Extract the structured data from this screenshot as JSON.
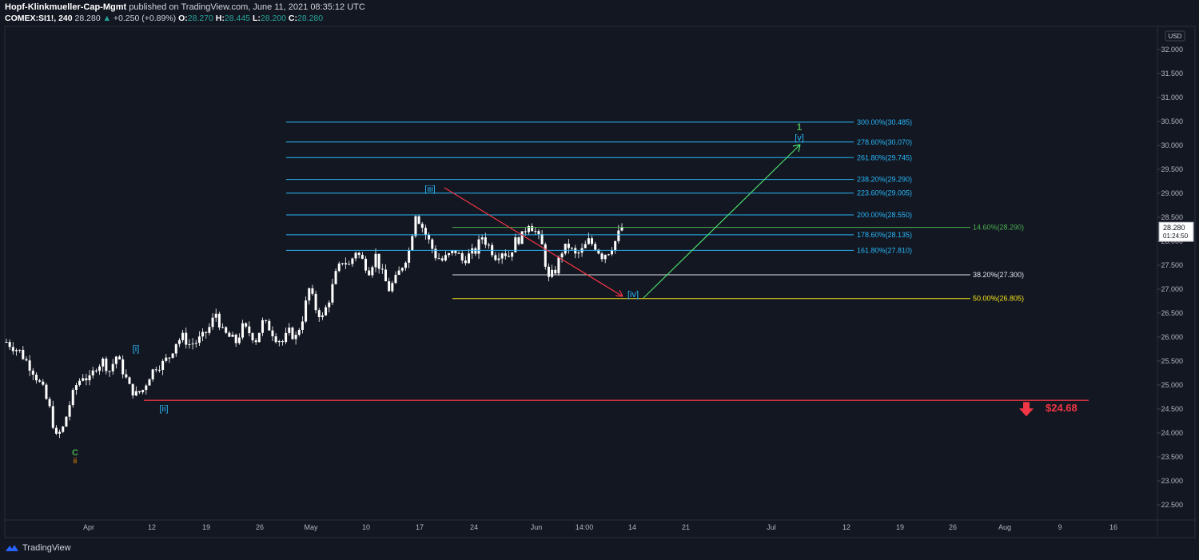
{
  "header": {
    "author": "Hopf-Klinkmueller-Cap-Mgmt",
    "published": "published on TradingView.com, June 11, 2021 08:35:12 UTC",
    "symbol": "COMEX:SI1!, 240",
    "last": "28.280",
    "change_arrow": "▲",
    "change": "+0.250 (+0.89%)",
    "o_label": "O:",
    "o_value": "28.270",
    "h_label": "H:",
    "h_value": "28.445",
    "l_label": "L:",
    "l_value": "28.200",
    "c_label": "C:",
    "c_value": "28.280"
  },
  "footer": {
    "brand": "TradingView",
    "icon": "tradingview-logo-icon"
  },
  "chart_data": {
    "type": "candlestick",
    "currency": "USD",
    "timeframe": "240",
    "ylim": [
      22.0,
      32.5
    ],
    "y_ticks": [
      "32.000",
      "31.500",
      "31.000",
      "30.500",
      "30.000",
      "29.500",
      "29.000",
      "28.500",
      "28.000",
      "27.500",
      "27.000",
      "26.500",
      "26.000",
      "25.500",
      "25.000",
      "24.500",
      "24.000",
      "23.500",
      "23.000",
      "22.500"
    ],
    "x_ticks": [
      "Apr",
      "12",
      "19",
      "26",
      "May",
      "10",
      "17",
      "24",
      "Jun",
      "14:00",
      "14",
      "21",
      "Jul",
      "12",
      "19",
      "26",
      "Aug",
      "9",
      "16"
    ],
    "price_tag": {
      "value": "28.280",
      "countdown": "01:24:50"
    },
    "price_path": [
      [
        0,
        25.9
      ],
      [
        4,
        25.7
      ],
      [
        8,
        25.3
      ],
      [
        11,
        24.9
      ],
      [
        13,
        24.5
      ],
      [
        15,
        23.9
      ],
      [
        17,
        24.1
      ],
      [
        19,
        24.6
      ],
      [
        21,
        25.0
      ],
      [
        23,
        25.2
      ],
      [
        25,
        25.1
      ],
      [
        27,
        25.4
      ],
      [
        29,
        25.5
      ],
      [
        31,
        25.3
      ],
      [
        33,
        25.6
      ],
      [
        35,
        25.3
      ],
      [
        37,
        24.95
      ],
      [
        39,
        24.8
      ],
      [
        41,
        24.9
      ],
      [
        43,
        25.2
      ],
      [
        45,
        25.4
      ],
      [
        47,
        25.45
      ],
      [
        49,
        25.6
      ],
      [
        51,
        25.9
      ],
      [
        53,
        26.0
      ],
      [
        55,
        25.85
      ],
      [
        57,
        25.9
      ],
      [
        59,
        26.0
      ],
      [
        61,
        26.2
      ],
      [
        63,
        26.5
      ],
      [
        65,
        26.1
      ],
      [
        67,
        26.0
      ],
      [
        69,
        25.9
      ],
      [
        71,
        26.2
      ],
      [
        73,
        26.1
      ],
      [
        75,
        25.95
      ],
      [
        77,
        26.3
      ],
      [
        79,
        26.2
      ],
      [
        81,
        26.0
      ],
      [
        83,
        25.9
      ],
      [
        85,
        26.1
      ],
      [
        87,
        26.0
      ],
      [
        89,
        26.4
      ],
      [
        91,
        27.0
      ],
      [
        93,
        26.6
      ],
      [
        95,
        26.4
      ],
      [
        97,
        26.8
      ],
      [
        99,
        27.3
      ],
      [
        101,
        27.6
      ],
      [
        103,
        27.5
      ],
      [
        105,
        27.8
      ],
      [
        107,
        27.6
      ],
      [
        109,
        27.4
      ],
      [
        111,
        27.7
      ],
      [
        113,
        27.3
      ],
      [
        115,
        27.0
      ],
      [
        117,
        27.2
      ],
      [
        119,
        27.5
      ],
      [
        121,
        27.8
      ],
      [
        123,
        28.6
      ],
      [
        125,
        28.3
      ],
      [
        127,
        28.0
      ],
      [
        129,
        27.7
      ],
      [
        131,
        27.6
      ],
      [
        133,
        27.7
      ],
      [
        135,
        27.8
      ],
      [
        137,
        27.6
      ],
      [
        139,
        27.7
      ],
      [
        141,
        27.8
      ],
      [
        143,
        28.1
      ],
      [
        145,
        27.9
      ],
      [
        147,
        27.7
      ],
      [
        149,
        27.8
      ],
      [
        151,
        27.7
      ],
      [
        153,
        28.0
      ],
      [
        155,
        28.1
      ],
      [
        157,
        28.4
      ],
      [
        159,
        28.2
      ],
      [
        161,
        27.9
      ],
      [
        163,
        27.2
      ],
      [
        165,
        27.4
      ],
      [
        167,
        27.8
      ],
      [
        169,
        27.9
      ],
      [
        171,
        27.7
      ],
      [
        173,
        27.8
      ],
      [
        175,
        28.0
      ],
      [
        177,
        27.9
      ],
      [
        179,
        27.7
      ],
      [
        181,
        27.8
      ],
      [
        183,
        28.0
      ],
      [
        185,
        28.3
      ]
    ],
    "price_path_x_unit": "4h bars since start of chart",
    "fib_levels": [
      {
        "label": "300.00%(30.485)",
        "value": 30.485,
        "color": "#29b6f6"
      },
      {
        "label": "278.60%(30.070)",
        "value": 30.07,
        "color": "#29b6f6"
      },
      {
        "label": "261.80%(29.745)",
        "value": 29.745,
        "color": "#29b6f6"
      },
      {
        "label": "238.20%(29.290)",
        "value": 29.29,
        "color": "#29b6f6"
      },
      {
        "label": "223.60%(29.005)",
        "value": 29.005,
        "color": "#29b6f6"
      },
      {
        "label": "200.00%(28.550)",
        "value": 28.55,
        "color": "#29b6f6"
      },
      {
        "label": "178.60%(28.135)",
        "value": 28.135,
        "color": "#29b6f6"
      },
      {
        "label": "161.80%(27.810)",
        "value": 27.81,
        "color": "#29b6f6"
      }
    ],
    "retracements": [
      {
        "label": "14.60%(28.290)",
        "value": 28.29,
        "color": "#4caf50"
      },
      {
        "label": "38.20%(27.300)",
        "value": 27.3,
        "color": "#e0e3eb"
      },
      {
        "label": "50.00%(26.805)",
        "value": 26.805,
        "color": "#f5e41b"
      }
    ],
    "support": {
      "value": 24.68,
      "label": "$24.68",
      "color": "#f23645"
    },
    "wave_labels": [
      {
        "text": "[i]",
        "color": "#29b6f6"
      },
      {
        "text": "[ii]",
        "color": "#29b6f6"
      },
      {
        "text": "[iii]",
        "color": "#29b6f6"
      },
      {
        "text": "[iv]",
        "color": "#29b6f6"
      },
      {
        "text": "[v]",
        "color": "#29b6f6"
      },
      {
        "text": "1",
        "color": "#4caf50"
      },
      {
        "text": "C",
        "color": "#4caf50"
      },
      {
        "text": "ii",
        "color": "#ff9800"
      }
    ],
    "colors": {
      "background": "#131722",
      "candle": "#ffffff",
      "grid": "#1e222d",
      "axis_text": "#b2b5be"
    }
  }
}
